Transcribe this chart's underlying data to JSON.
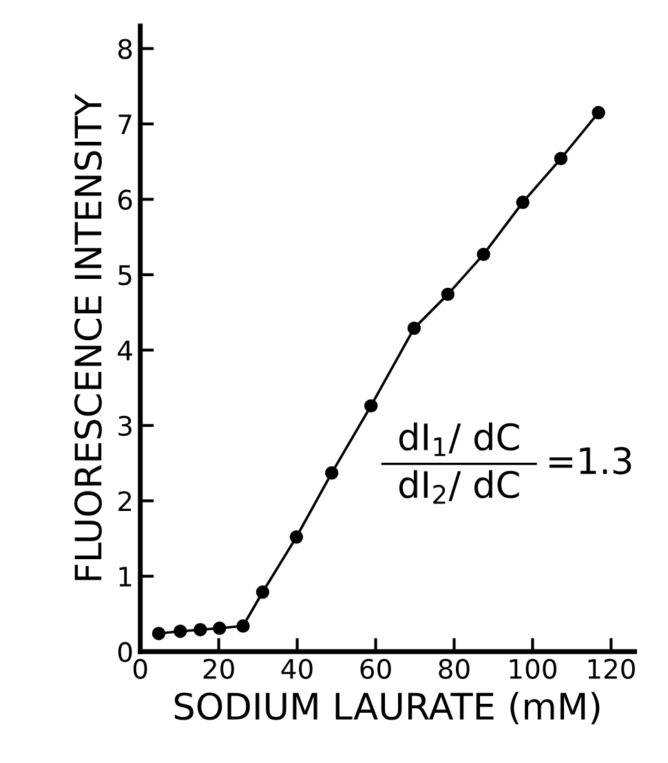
{
  "chart_data": {
    "type": "line",
    "xlabel": "SODIUM LAURATE (mM)",
    "ylabel": "FLUORESCENCE INTENSITY",
    "x": [
      4.7,
      10.2,
      15.3,
      20.2,
      26.2,
      31.2,
      39.8,
      48.8,
      58.8,
      69.8,
      78.4,
      87.5,
      97.5,
      107.2,
      116.8
    ],
    "series": [
      {
        "color": "#000000",
        "values": [
          0.24,
          0.27,
          0.29,
          0.31,
          0.34,
          0.79,
          1.52,
          2.37,
          3.26,
          4.29,
          4.74,
          5.27,
          5.96,
          6.54,
          7.15
        ]
      }
    ],
    "xlim": [
      0,
      126
    ],
    "ylim": [
      0,
      8.3
    ],
    "xticks": [
      0,
      20,
      40,
      60,
      80,
      100,
      120
    ],
    "yticks": [
      0,
      1,
      2,
      3,
      4,
      5,
      6,
      7,
      8
    ],
    "marker": "circle",
    "line_style": "solid",
    "grid": false,
    "legend": false,
    "annotations": [
      "dI$_{1}$/ dC",
      "dI$_{2}$/ dC",
      "=1.3"
    ]
  }
}
